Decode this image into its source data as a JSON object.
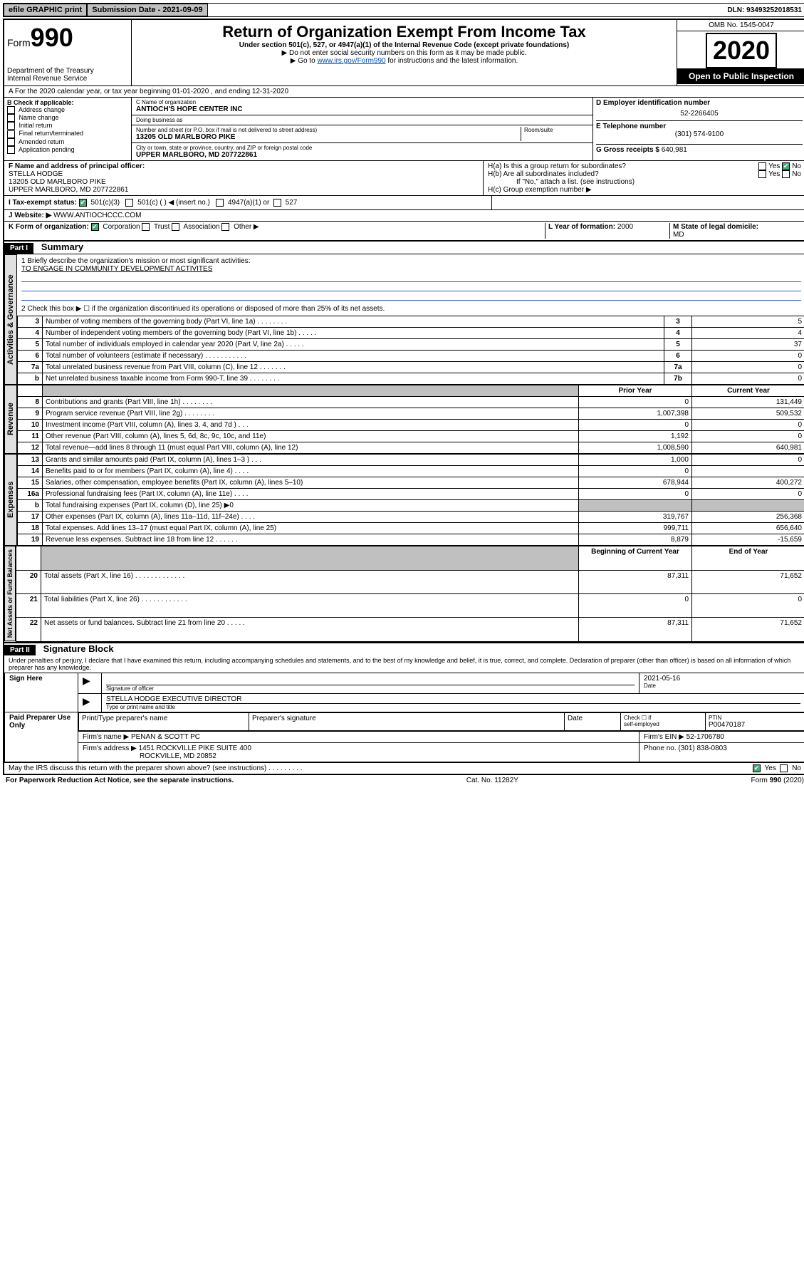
{
  "topbar": {
    "efile": "efile GRAPHIC print",
    "submission_label": "Submission Date - 2021-09-09",
    "dln": "DLN: 93493252018531"
  },
  "header": {
    "form_label": "Form",
    "form_number": "990",
    "dept": "Department of the Treasury\nInternal Revenue Service",
    "title": "Return of Organization Exempt From Income Tax",
    "subtitle": "Under section 501(c), 527, or 4947(a)(1) of the Internal Revenue Code (except private foundations)",
    "note1": "▶ Do not enter social security numbers on this form as it may be made public.",
    "note2_pre": "▶ Go to ",
    "note2_link": "www.irs.gov/Form990",
    "note2_post": " for instructions and the latest information.",
    "omb": "OMB No. 1545-0047",
    "year": "2020",
    "open_public": "Open to Public Inspection"
  },
  "section_a": {
    "line": "A For the 2020 calendar year, or tax year beginning 01-01-2020   , and ending 12-31-2020",
    "b_label": "B Check if applicable:",
    "b_opts": [
      "Address change",
      "Name change",
      "Initial return",
      "Final return/terminated",
      "Amended return",
      "Application pending"
    ],
    "c_name_label": "C Name of organization",
    "c_name": "ANTIOCH'S HOPE CENTER INC",
    "dba_label": "Doing business as",
    "dba": "",
    "addr_label": "Number and street (or P.O. box if mail is not delivered to street address)",
    "room_label": "Room/suite",
    "addr": "13205 OLD MARLBORO PIKE",
    "city_label": "City or town, state or province, country, and ZIP or foreign postal code",
    "city": "UPPER MARLBORO, MD  207722861",
    "d_label": "D Employer identification number",
    "d_ein": "52-2266405",
    "e_label": "E Telephone number",
    "e_phone": "(301) 574-9100",
    "g_label": "G Gross receipts $ ",
    "g_amount": "640,981",
    "f_label": "F  Name and address of principal officer:",
    "f_name": "STELLA HODGE",
    "f_addr1": "13205 OLD MARLBORO PIKE",
    "f_addr2": "UPPER MARLBORO, MD  207722861",
    "ha_label": "H(a)  Is this a group return for subordinates?",
    "hb_label": "H(b)  Are all subordinates included?",
    "hb_note": "If \"No,\" attach a list. (see instructions)",
    "hc_label": "H(c)  Group exemption number ▶",
    "yes": "Yes",
    "no": "No",
    "i_label": "I   Tax-exempt status:",
    "i_opts_501c3": "501(c)(3)",
    "i_opts_501c": "501(c) (  ) ◀ (insert no.)",
    "i_opts_4947": "4947(a)(1) or",
    "i_opts_527": "527",
    "j_label": "J   Website: ▶",
    "j_site": "WWW.ANTIOCHCCC.COM",
    "k_label": "K Form of organization:",
    "k_opts": [
      "Corporation",
      "Trust",
      "Association",
      "Other ▶"
    ],
    "l_label": "L Year of formation: ",
    "l_year": "2000",
    "m_label": "M State of legal domicile:",
    "m_state": "MD"
  },
  "part1": {
    "hdr_num": "Part I",
    "hdr_title": "Summary",
    "side_activities": "Activities & Governance",
    "side_revenue": "Revenue",
    "side_expenses": "Expenses",
    "side_netassets": "Net Assets or Fund Balances",
    "q1_label": "1  Briefly describe the organization's mission or most significant activities:",
    "q1_value": "TO ENGAGE IN COMMUNITY DEVELOPMENT ACTIVITES",
    "q2_label": "2   Check this box ▶ ☐  if the organization discontinued its operations or disposed of more than 25% of its net assets.",
    "rows_gov": [
      {
        "n": "3",
        "desc": "Number of voting members of the governing body (Part VI, line 1a)   .   .   .   .   .   .   .   .",
        "ln": "3",
        "val": "5"
      },
      {
        "n": "4",
        "desc": "Number of independent voting members of the governing body (Part VI, line 1b)   .   .   .   .   .",
        "ln": "4",
        "val": "4"
      },
      {
        "n": "5",
        "desc": "Total number of individuals employed in calendar year 2020 (Part V, line 2a)   .   .   .   .   .",
        "ln": "5",
        "val": "37"
      },
      {
        "n": "6",
        "desc": "Total number of volunteers (estimate if necessary)   .   .   .   .   .   .   .   .   .   .   .",
        "ln": "6",
        "val": "0"
      },
      {
        "n": "7a",
        "desc": "Total unrelated business revenue from Part VIII, column (C), line 12   .   .   .   .   .   .   .",
        "ln": "7a",
        "val": "0"
      },
      {
        "n": "b",
        "desc": "Net unrelated business taxable income from Form 990-T, line 39   .   .   .   .   .   .   .   .",
        "ln": "7b",
        "val": "0"
      }
    ],
    "col_prior": "Prior Year",
    "col_current": "Current Year",
    "rows_rev": [
      {
        "n": "8",
        "desc": "Contributions and grants (Part VIII, line 1h)   .   .   .   .   .   .   .   .",
        "prior": "0",
        "cur": "131,449"
      },
      {
        "n": "9",
        "desc": "Program service revenue (Part VIII, line 2g)   .   .   .   .   .   .   .   .",
        "prior": "1,007,398",
        "cur": "509,532"
      },
      {
        "n": "10",
        "desc": "Investment income (Part VIII, column (A), lines 3, 4, and 7d )   .   .   .",
        "prior": "0",
        "cur": "0"
      },
      {
        "n": "11",
        "desc": "Other revenue (Part VIII, column (A), lines 5, 6d, 8c, 9c, 10c, and 11e)",
        "prior": "1,192",
        "cur": "0"
      },
      {
        "n": "12",
        "desc": "Total revenue—add lines 8 through 11 (must equal Part VIII, column (A), line 12)",
        "prior": "1,008,590",
        "cur": "640,981"
      }
    ],
    "rows_exp": [
      {
        "n": "13",
        "desc": "Grants and similar amounts paid (Part IX, column (A), lines 1–3 )   .   .   .",
        "prior": "1,000",
        "cur": "0"
      },
      {
        "n": "14",
        "desc": "Benefits paid to or for members (Part IX, column (A), line 4)   .   .   .   .",
        "prior": "0",
        "cur": ""
      },
      {
        "n": "15",
        "desc": "Salaries, other compensation, employee benefits (Part IX, column (A), lines 5–10)",
        "prior": "678,944",
        "cur": "400,272"
      },
      {
        "n": "16a",
        "desc": "Professional fundraising fees (Part IX, column (A), line 11e)   .   .   .   .",
        "prior": "0",
        "cur": "0"
      },
      {
        "n": "b",
        "desc": "Total fundraising expenses (Part IX, column (D), line 25) ▶0",
        "prior": "",
        "cur": "",
        "shaded": true
      },
      {
        "n": "17",
        "desc": "Other expenses (Part IX, column (A), lines 11a–11d, 11f–24e)   .   .   .   .",
        "prior": "319,767",
        "cur": "256,368"
      },
      {
        "n": "18",
        "desc": "Total expenses. Add lines 13–17 (must equal Part IX, column (A), line 25)",
        "prior": "999,711",
        "cur": "656,640"
      },
      {
        "n": "19",
        "desc": "Revenue less expenses. Subtract line 18 from line 12   .   .   .   .   .   .",
        "prior": "8,879",
        "cur": "-15,659"
      }
    ],
    "col_begin": "Beginning of Current Year",
    "col_end": "End of Year",
    "rows_net": [
      {
        "n": "20",
        "desc": "Total assets (Part X, line 16)   .   .   .   .   .   .   .   .   .   .   .   .   .",
        "prior": "87,311",
        "cur": "71,652"
      },
      {
        "n": "21",
        "desc": "Total liabilities (Part X, line 26)   .   .   .   .   .   .   .   .   .   .   .   .",
        "prior": "0",
        "cur": "0"
      },
      {
        "n": "22",
        "desc": "Net assets or fund balances. Subtract line 21 from line 20   .   .   .   .   .",
        "prior": "87,311",
        "cur": "71,652"
      }
    ]
  },
  "part2": {
    "hdr_num": "Part II",
    "hdr_title": "Signature Block",
    "perjury": "Under penalties of perjury, I declare that I have examined this return, including accompanying schedules and statements, and to the best of my knowledge and belief, it is true, correct, and complete. Declaration of preparer (other than officer) is based on all information of which preparer has any knowledge.",
    "sign_here": "Sign Here",
    "sig_officer_label": "Signature of officer",
    "sig_date": "2021-05-16",
    "sig_date_label": "Date",
    "sig_name": "STELLA HODGE  EXECUTIVE DIRECTOR",
    "sig_name_label": "Type or print name and title",
    "paid_label": "Paid Preparer Use Only",
    "prep_name_label": "Print/Type preparer's name",
    "prep_sig_label": "Preparer's signature",
    "prep_date_label": "Date",
    "prep_self_label_1": "Check ☐ if",
    "prep_self_label_2": "self-employed",
    "ptin_label": "PTIN",
    "ptin": "P00470187",
    "firm_name_label": "Firm's name      ▶",
    "firm_name": "PENAN & SCOTT PC",
    "firm_ein_label": "Firm's EIN ▶",
    "firm_ein": "52-1706780",
    "firm_addr_label": "Firm's address ▶",
    "firm_addr1": "1451 ROCKVILLE PIKE SUITE 400",
    "firm_addr2": "ROCKVILLE, MD  20852",
    "firm_phone_label": "Phone no. ",
    "firm_phone": "(301) 838-0803",
    "discuss": "May the IRS discuss this return with the preparer shown above? (see instructions)   .   .   .   .   .   .   .   .   .",
    "yes": "Yes",
    "no": "No"
  },
  "footer": {
    "left": "For Paperwork Reduction Act Notice, see the separate instructions.",
    "mid": "Cat. No. 11282Y",
    "right": "Form 990 (2020)"
  }
}
